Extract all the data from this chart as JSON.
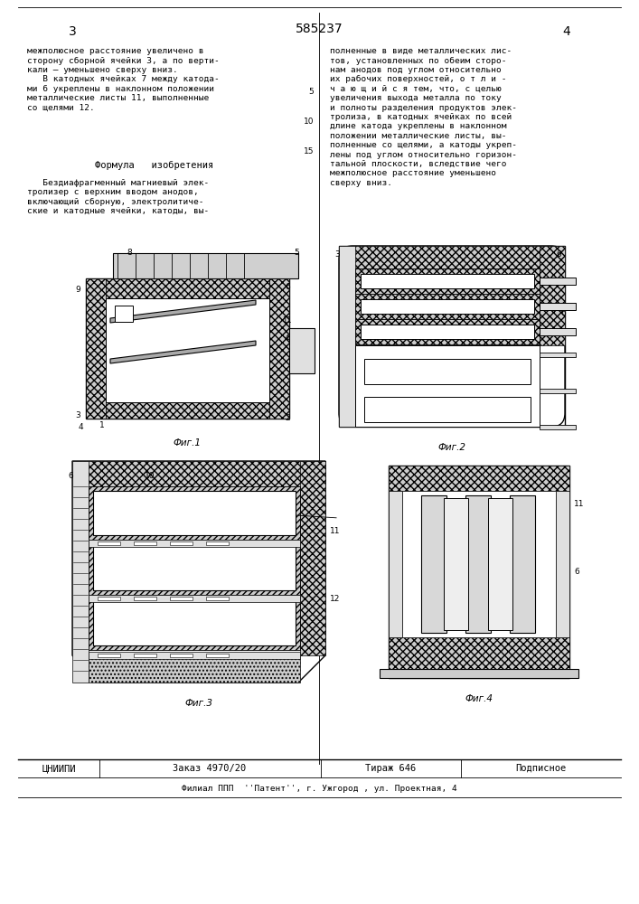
{
  "patent_number": "585237",
  "page_left": "3",
  "page_right": "4",
  "fig1_label": "Фиг.1",
  "fig2_label": "Фиг.2",
  "fig3_label": "Фиг.3",
  "fig4_label": "Фиг.4",
  "footer_org": "ЦНИИПИ",
  "footer_order": "Заказ 4970/20",
  "footer_print": "Тираж 646",
  "footer_sign": "Подписное",
  "footer_branch": "Филиал ППП  ''Патент'', г. Ужгород , ул. Проектная, 4",
  "bg_color": "#ffffff"
}
